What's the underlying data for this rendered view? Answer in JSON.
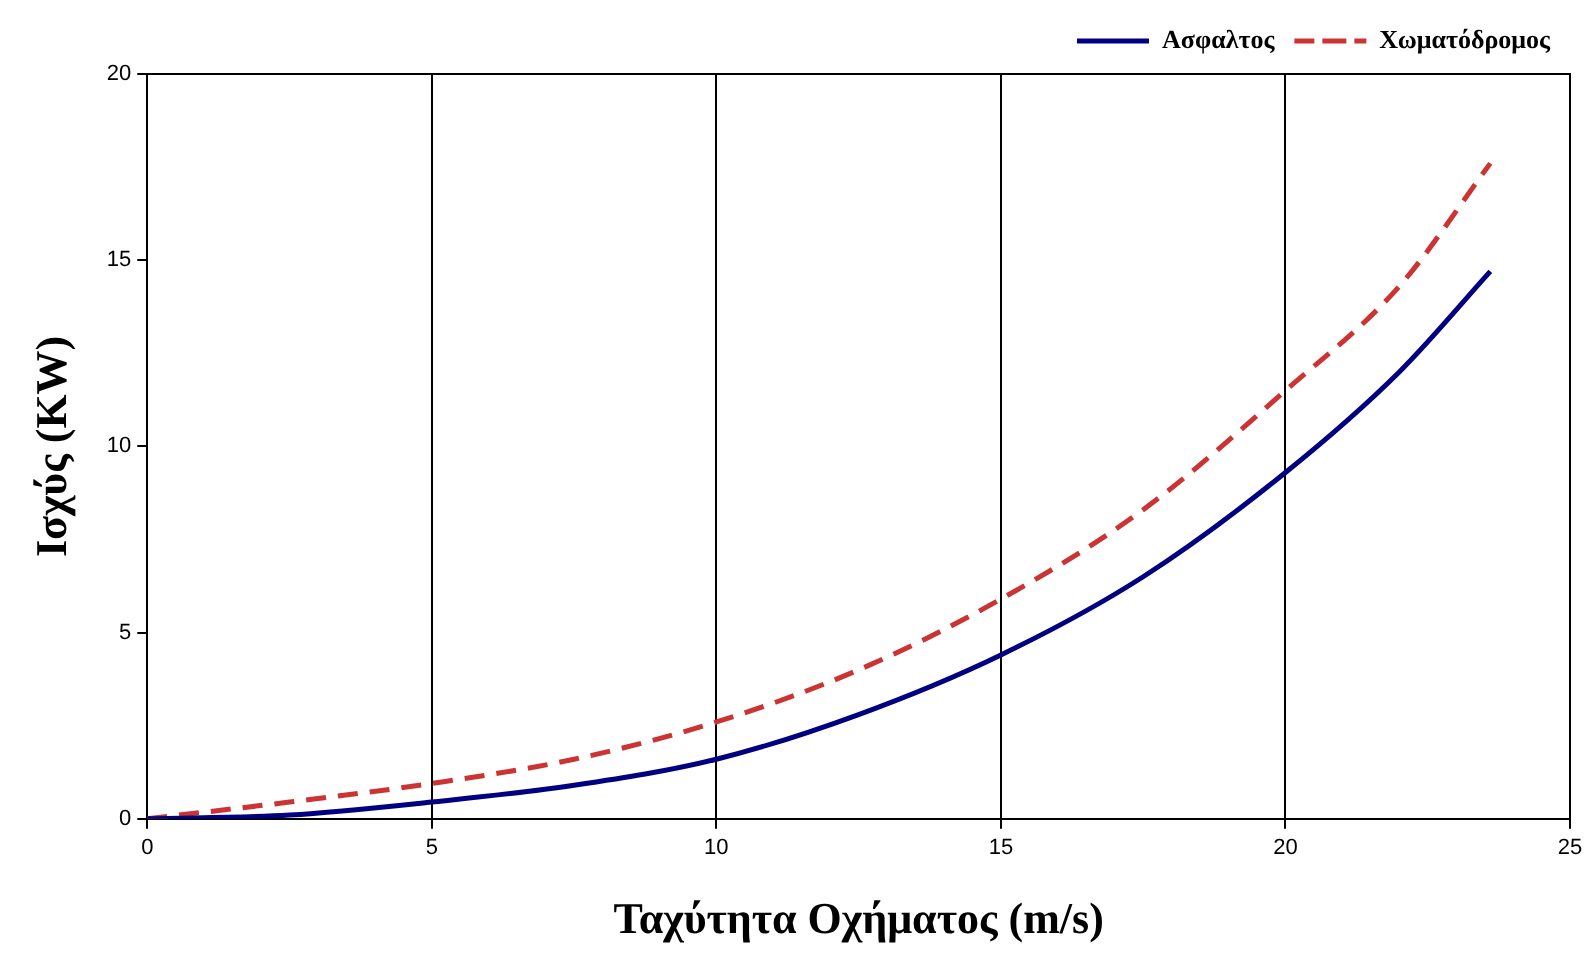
{
  "chart_data": {
    "type": "line",
    "xlabel": "Ταχύτητα Οχήματος (m/s)",
    "ylabel": "Ισχύς (KW)",
    "xlim": [
      0,
      25
    ],
    "xticks": [
      0,
      5,
      10,
      15,
      20,
      25
    ],
    "ylim": [
      0,
      20
    ],
    "yticks": [
      0,
      5,
      10,
      15,
      20
    ],
    "grid": "x",
    "legend": "top right",
    "marker": "none",
    "series": [
      {
        "name": "Ασφαλτος",
        "color": "#000080",
        "line_style": "solid",
        "x": [
          0,
          2.5,
          5,
          7.5,
          10,
          12.5,
          15,
          17.5,
          20,
          22,
          23.6
        ],
        "values": [
          0,
          0.1,
          0.45,
          0.9,
          1.6,
          2.8,
          4.4,
          6.5,
          9.3,
          12,
          14.7
        ]
      },
      {
        "name": "Χωματόδρομος",
        "color": "#cc3333",
        "line_style": "dashed",
        "x": [
          0,
          2.5,
          5,
          7.5,
          10,
          12.5,
          15,
          17.5,
          20,
          22,
          23.6
        ],
        "values": [
          0,
          0.45,
          0.95,
          1.6,
          2.6,
          4,
          5.9,
          8.3,
          11.5,
          14.3,
          17.6
        ]
      }
    ]
  }
}
